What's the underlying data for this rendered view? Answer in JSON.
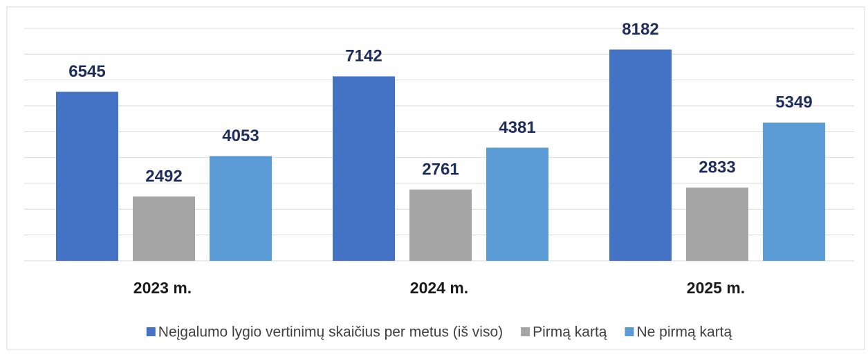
{
  "chart_data": {
    "type": "bar",
    "categories": [
      "2023 m.",
      "2024 m.",
      "2025 m."
    ],
    "series": [
      {
        "name": "Neįgalumo lygio vertinimų skaičius per metus (iš viso)",
        "color": "#4472c4",
        "values": [
          6545,
          7142,
          8182
        ]
      },
      {
        "name": "Pirmą kartą",
        "color": "#a5a5a5",
        "values": [
          2492,
          2761,
          2833
        ]
      },
      {
        "name": "Ne pirmą kartą",
        "color": "#5b9bd5",
        "values": [
          4053,
          4381,
          5349
        ]
      }
    ],
    "ylim": [
      0,
      9000
    ],
    "yticks": [
      0,
      1000,
      2000,
      3000,
      4000,
      5000,
      6000,
      7000,
      8000,
      9000
    ],
    "grid": true,
    "legend": "bottom"
  }
}
